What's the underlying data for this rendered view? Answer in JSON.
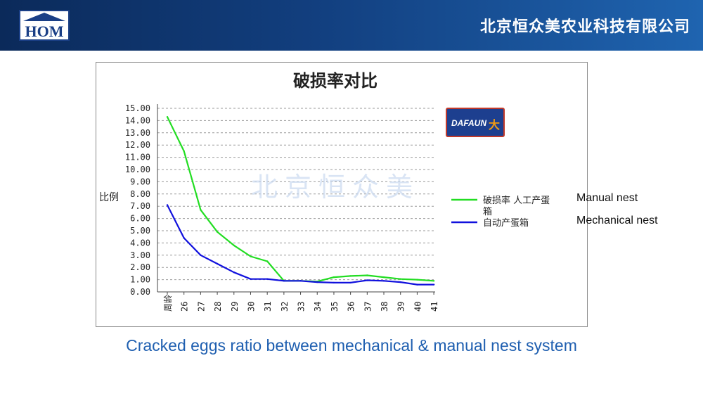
{
  "header": {
    "logo_text": "HOM",
    "company_name": "北京恒众美农业科技有限公司"
  },
  "chart_data": {
    "type": "line",
    "title": "破损率对比",
    "ylabel": "比例",
    "xlabel": "",
    "ylim": [
      0,
      15
    ],
    "ytick_labels": [
      "0.00",
      "1.00",
      "2.00",
      "3.00",
      "4.00",
      "5.00",
      "6.00",
      "7.00",
      "8.00",
      "9.00",
      "10.00",
      "11.00",
      "12.00",
      "13.00",
      "14.00",
      "15.00"
    ],
    "categories": [
      "周龄",
      "26",
      "27",
      "28",
      "29",
      "30",
      "31",
      "32",
      "33",
      "34",
      "35",
      "36",
      "37",
      "38",
      "39",
      "40",
      "41"
    ],
    "grid": true,
    "legend_position": "right",
    "series": [
      {
        "name": "破损率 人工产蛋箱",
        "color": "#22dd22",
        "values": [
          14.3,
          11.5,
          6.7,
          4.9,
          3.8,
          2.9,
          2.5,
          0.9,
          0.9,
          0.85,
          1.2,
          1.3,
          1.35,
          1.2,
          1.05,
          1.0,
          0.9
        ]
      },
      {
        "name": "自动产蛋箱",
        "color": "#1111dd",
        "values": [
          7.1,
          4.4,
          3.0,
          2.3,
          1.6,
          1.05,
          1.05,
          0.9,
          0.9,
          0.8,
          0.75,
          0.75,
          0.95,
          0.9,
          0.8,
          0.6,
          0.6
        ]
      }
    ],
    "watermark": "北京恒众美",
    "badge_text": "DAFAUN"
  },
  "legend_notes": [
    "Manual nest",
    "Mechanical nest"
  ],
  "caption": "Cracked eggs ratio between mechanical & manual nest system"
}
